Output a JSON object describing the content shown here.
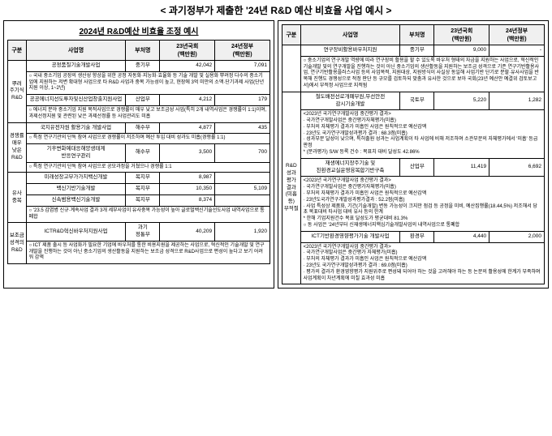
{
  "page_title": "< 과기정부가 제출한 '24년 R&D 예산 비효율 사업 예시 >",
  "left": {
    "sub_title": "2024년 R&D예산 비효율 조정 예시",
    "headers": [
      "구분",
      "사업명",
      "부처명",
      "23년국회\n(백만원)",
      "24년정부\n(백만원)"
    ],
    "groups": [
      {
        "cat": "뿌려\n주기식\nR&D",
        "rows": [
          {
            "biz": "공정품질기술개발사업",
            "dept": "중기부",
            "a": "42,042",
            "b": "7,091",
            "desc": "○ 국내 중소기업 공장의 생산성 향상을 위한 공정 자동화·지능화·효율화 등 기술 개발 및 실용화 뿌려정 다수의 중소기업에 지원하는 저변 확대형 사업으로 타 R&D 사업과 중복 가능성이 높고, 현장에 3억 미만의 소액·단기과제 사업(단년지원 이상, 1~2년)"
          },
          {
            "biz": "공공에너지선도투자및신산업창출지원사업",
            "dept": "산업부",
            "a": "4,212",
            "b": "179",
            "desc": "○ 에너지 분야 중소기업 지원 목적사업으로 경쟁률이 매우 낮고 보조금성 사업(특히 2개 내역사업은 경쟁률이 1:1)이며, 과제선정지원 및 관련된 낮은 과제선정률 등 사업관리도 미흡"
          }
        ]
      },
      {
        "cat": "경쟁률\n매우\n낮은\nR&D",
        "rows": [
          {
            "biz": "국지유전자원 활용기술 개발사업",
            "dept": "해수부",
            "a": "4,877",
            "b": "435",
            "desc": "○ 특정 연구기관의 단독 참여 사업으로 경쟁률이 저조하며 예산 투입 대비 성과도 미흡(경쟁률 1:1)"
          },
          {
            "biz": "기후변화예대응해양생태계\n반응연구관리",
            "dept": "해수부",
            "a": "3,500",
            "b": "700",
            "desc": "○ 특정 연구기관의 단독 참여 사업으로 공모과정을 거쳤으나 경쟁률 1:1"
          }
        ]
      },
      {
        "cat": "유사\n중복",
        "rows": [
          {
            "biz": "미래성장고부가가치백신개발",
            "dept": "복지부",
            "a": "8,987",
            "b": "",
            "desc": ""
          },
          {
            "biz": "백신기반기술개발",
            "dept": "복지부",
            "a": "10,350",
            "b": "5,109",
            "desc": ""
          },
          {
            "biz": "신속범용백신기술개발",
            "dept": "복지부",
            "a": "8,374",
            "b": "",
            "desc": "○ '23.5 감염병 신규·계속사업 결과 3개 세부사업이 유사중복 가능성이 높아 글로벌백신기술선도사업 내역사업으로 통폐합"
          }
        ]
      },
      {
        "cat": "보조금\n성격의\nR&D",
        "rows": [
          {
            "biz": "ICTR&D혁신바우처지원사업",
            "dept": "과기\n정통부",
            "a": "40,209",
            "b": "1,920",
            "desc": "○ ICT 제품 출시 등 사업화가 필요한 기업에 바우처를 통한 비용지원을 제공하는 사업으로, 혁신적인 기술개발 및 연구개발을 진행하는 것이 아닌 중소기업의 생산활동을 지원하는 보조금 성격으로 R&D사업으로 편성이 높다고 보기 어려워 감액"
          }
        ]
      }
    ]
  },
  "right": {
    "headers": [
      "구분",
      "사업명",
      "부처명",
      "23년국회\n(백만원)",
      "24년정부\n(백만원)"
    ],
    "top_rows": [
      {
        "biz": "연구장비활용바우처지원",
        "dept": "중기부",
        "a": "9,000",
        "b": "-",
        "desc": "○ 중소기업의 연구개발 역량에 따라 연구장비 활용을 할 수 있도록 바우처 형태의 자금을 지원하는 사업으로, 혁신적인 기술개발 및의 연구개발을 진행하는 것이 아닌 중소기업의 생산활동을 지원하는 보조금 성격으로 기존 연구기반활용사업, 연구기반활용플러스사업 등의 사업목적, 지원대상, 지원방식이 사실상 동일해 사업기반 단기로 분할·유사사업을 반복해 진행도 경쟁성으로 적정 판단 등 규모를 검토하되 맞춤과 유사한 것으로 보아 국회(23년 예산안 예결위 검토보고서)에서 부적정 사업으로 지적됨"
      }
    ],
    "group": {
      "cat": "R&D\n성과\n평가\n결과\n(미흡\n등)\n부적절",
      "rows": [
        {
          "biz": "철도배전선로개폐부원,무선안전\n감시기술개발",
          "dept": "국토부",
          "a": "5,220",
          "b": "1,282",
          "desc": "<2023년 국가연구개발사업 중간평가 결과>\n· 국가연구개발사업은 중간평가자체평가(미흡)\n· 부처의 자체평가 결과가 미흡인 사업은 원칙적으로 예산감액\n· 23년도 국가연구개발성과평가 결과 : 68.3점(미흡)\n· 성과부문 달성이 낮으며, 특허출원 성과는 사업계획이 타 사업에 비해 저조하며 소관부문의 자체평가에서 '미흡' 등급 판정\n* (분과평가) S/W 등록 건수 : 목표치 대비 달성도 42.86%"
        },
        {
          "biz": "재생에너지장주기술 및\n친환경교실운영융복합기반구축",
          "dept": "산업부",
          "a": "11,419",
          "b": "6,692",
          "desc": "<2023년 국가연구개발사업 중간평가 결과>\n· 국가연구개발사업은 중간평가자체평가(미흡)\n· 부처의 자체평가 결과가 미흡인 사업은 원칙적으로 예산감액\n· 23년도국가연구개발성과평가결과 : 52.2점(미흡)\n· 사업 특성상 제품화, 기간(기술개발) 변동 가능성이 크지만 점검 등 공정을 미비, 예산집행률(18.44,5%) 저조해서 당초 목표대비 타사업 대비 유사 등의 한계\n* 한해 기업지원건수 목표 달성도가 평균대비 81.3%\n○ 동 사업은 '24년부터 신재생에너지핵심기술개발사업의 내역사업으로 통폐합"
        },
        {
          "biz": "ICT기반환경영향평가기술 개발사업",
          "dept": "환경부",
          "a": "4,440",
          "b": "2,000",
          "desc": "<2023년 국가연구개발사업 중간평가 결과>\n· 국가연구개발사업은 중간평가 자체평가(미흡)\n· 부처의 자체평가 결과가 미흡인 사업은 원칙적으로 예산감액\n· 23년도 국가연구개발성과평가 결과 : 69.0점(미흡)\n· 평가의 결과가 환경영향평가 지원위주로 편성돼 되어야 하는 것을 고려해야 하는 등 논문의 활용성에 한계가 부족하며 사업계획이 차년계획에 미칠 효과성 미흡"
        }
      ]
    }
  }
}
